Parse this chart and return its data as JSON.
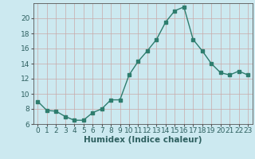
{
  "x": [
    0,
    1,
    2,
    3,
    4,
    5,
    6,
    7,
    8,
    9,
    10,
    11,
    12,
    13,
    14,
    15,
    16,
    17,
    18,
    19,
    20,
    21,
    22,
    23
  ],
  "y": [
    9.0,
    7.8,
    7.7,
    7.0,
    6.5,
    6.5,
    7.5,
    8.0,
    9.2,
    9.2,
    12.5,
    14.3,
    15.7,
    17.2,
    19.5,
    21.0,
    21.5,
    17.2,
    15.7,
    14.0,
    12.8,
    12.5,
    13.0,
    12.5
  ],
  "line_color": "#2e7d6e",
  "bg_color": "#cce9f0",
  "grid_color": "#c9a9a9",
  "xlabel": "Humidex (Indice chaleur)",
  "ylim": [
    6,
    22
  ],
  "xlim": [
    -0.5,
    23.5
  ],
  "yticks": [
    6,
    8,
    10,
    12,
    14,
    16,
    18,
    20
  ],
  "xticks": [
    0,
    1,
    2,
    3,
    4,
    5,
    6,
    7,
    8,
    9,
    10,
    11,
    12,
    13,
    14,
    15,
    16,
    17,
    18,
    19,
    20,
    21,
    22,
    23
  ],
  "xlabel_fontsize": 7.5,
  "tick_fontsize": 6.5
}
